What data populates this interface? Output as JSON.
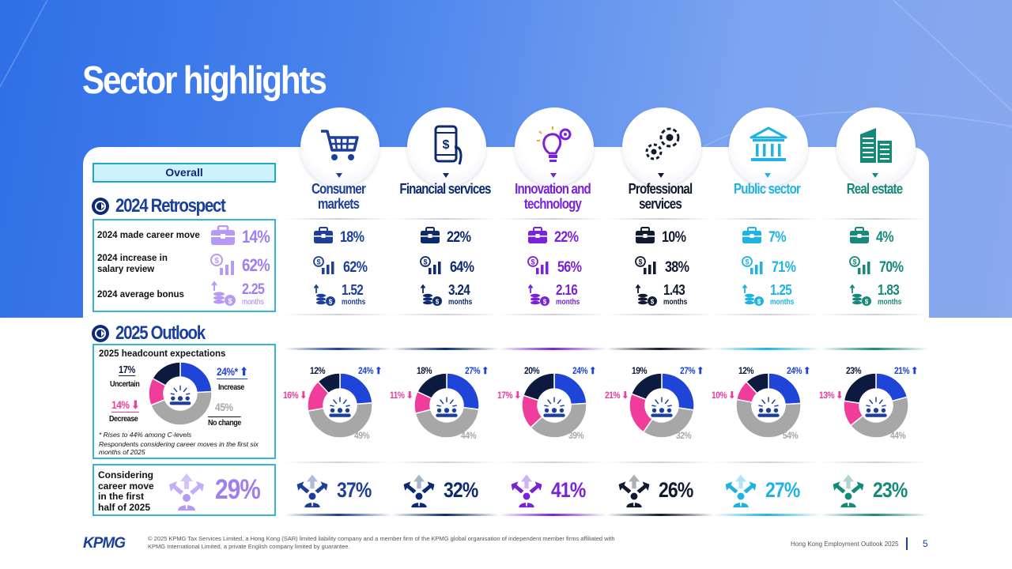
{
  "title": "Sector highlights",
  "overall": {
    "tag": "Overall",
    "retrospect_heading": "2024 Retrospect",
    "outlook_heading": "2025 Outlook",
    "rows": {
      "career_move_label": "2024 made career move",
      "career_move_value": "14%",
      "salary_label": "2024 increase in salary review",
      "salary_value": "62%",
      "bonus_label": "2024 average bonus",
      "bonus_value": "2.25",
      "bonus_unit": "months"
    },
    "headcount": {
      "title": "2025 headcount expectations",
      "uncertain_value": "17%",
      "uncertain_label": "Uncertain",
      "increase_value": "24%*",
      "increase_label": "Increase",
      "decrease_value": "14%",
      "decrease_label": "Decrease",
      "nochange_value": "45%",
      "nochange_label": "No change",
      "footnote1": "* Rises to 44% among C-levels",
      "footnote2": "Respondents considering career moves in the first six months of 2025"
    },
    "considering": {
      "label": "Considering career move in the first half of 2025",
      "value": "29%"
    }
  },
  "colors": {
    "increase": "#1e44d8",
    "nochange": "#a7a7a7",
    "decrease": "#f03c9a",
    "uncertain": "#0d1a3f"
  },
  "sectors": [
    {
      "name": "Consumer markets",
      "color": "#1d3f9a",
      "icon": "shopping-cart-icon",
      "career_move": "18%",
      "salary": "62%",
      "bonus": "1.52",
      "bonus_unit": "months",
      "uncertain": "12%",
      "increase": "24%",
      "decrease": "16%",
      "nochange": "49%",
      "considering": "37%"
    },
    {
      "name": "Financial services",
      "color": "#0c2a6f",
      "icon": "mobile-payment-icon",
      "career_move": "22%",
      "salary": "64%",
      "bonus": "3.24",
      "bonus_unit": "months",
      "uncertain": "18%",
      "increase": "27%",
      "decrease": "11%",
      "nochange": "44%",
      "considering": "32%"
    },
    {
      "name": "Innovation and technology",
      "color": "#7a22d6",
      "icon": "lightbulb-gear-icon",
      "career_move": "22%",
      "salary": "56%",
      "bonus": "2.16",
      "bonus_unit": "months",
      "uncertain": "20%",
      "increase": "24%",
      "decrease": "17%",
      "nochange": "39%",
      "considering": "41%"
    },
    {
      "name": "Professional services",
      "color": "#101a30",
      "icon": "gears-icon",
      "career_move": "10%",
      "salary": "38%",
      "bonus": "1.43",
      "bonus_unit": "months",
      "uncertain": "19%",
      "increase": "27%",
      "decrease": "21%",
      "nochange": "32%",
      "considering": "26%"
    },
    {
      "name": "Public sector",
      "color": "#1fb3e4",
      "icon": "government-building-icon",
      "career_move": "7%",
      "salary": "71%",
      "bonus": "1.25",
      "bonus_unit": "months",
      "uncertain": "12%",
      "increase": "24%",
      "decrease": "10%",
      "nochange": "54%",
      "considering": "27%"
    },
    {
      "name": "Real estate",
      "color": "#17897a",
      "icon": "office-buildings-icon",
      "career_move": "4%",
      "salary": "70%",
      "bonus": "1.83",
      "bonus_unit": "months",
      "uncertain": "23%",
      "increase": "21%",
      "decrease": "13%",
      "nochange": "44%",
      "considering": "23%"
    }
  ],
  "chart_data": [
    {
      "type": "pie",
      "title": "2025 headcount expectations",
      "categories": [
        "Increase",
        "No change",
        "Decrease",
        "Uncertain"
      ],
      "series": [
        {
          "name": "Overall",
          "values": [
            24,
            45,
            14,
            17
          ]
        },
        {
          "name": "Consumer markets",
          "values": [
            24,
            49,
            16,
            12
          ]
        },
        {
          "name": "Financial services",
          "values": [
            27,
            44,
            11,
            18
          ]
        },
        {
          "name": "Innovation and technology",
          "values": [
            24,
            39,
            17,
            20
          ]
        },
        {
          "name": "Professional services",
          "values": [
            27,
            32,
            21,
            19
          ]
        },
        {
          "name": "Public sector",
          "values": [
            24,
            54,
            10,
            12
          ]
        },
        {
          "name": "Real estate",
          "values": [
            21,
            44,
            13,
            23
          ]
        }
      ]
    },
    {
      "type": "table",
      "categories": [
        "Consumer markets",
        "Financial services",
        "Innovation and technology",
        "Professional services",
        "Public sector",
        "Real estate"
      ],
      "series": [
        {
          "name": "2024 made career move",
          "values": [
            18,
            22,
            22,
            10,
            7,
            4
          ]
        },
        {
          "name": "2024 increase in salary review",
          "values": [
            62,
            64,
            56,
            38,
            71,
            70
          ]
        },
        {
          "name": "2024 average bonus",
          "values": [
            1.52,
            3.24,
            2.16,
            1.43,
            1.25,
            1.83
          ]
        },
        {
          "name": "Considering career move in the first half of 2025",
          "values": [
            37,
            32,
            41,
            26,
            27,
            23
          ]
        }
      ]
    }
  ],
  "footer": {
    "logo": "KPMG",
    "legal": "© 2025 KPMG Tax Services Limited, a Hong Kong (SAR) limited liability company and a member firm of the KPMG global organisation of independent member firms affiliated with KPMG International Limited, a private English company limited by guarantee.",
    "report": "Hong Kong Employment Outlook 2025",
    "page": "5"
  }
}
